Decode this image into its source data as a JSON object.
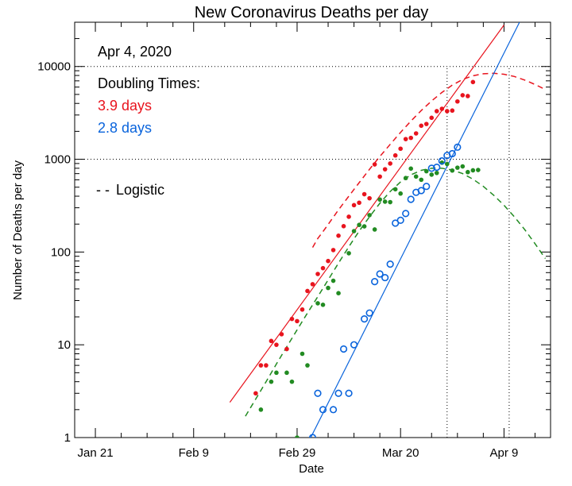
{
  "chart_data": {
    "type": "scatter",
    "title": "New Coronavirus Deaths per day",
    "xlabel": "Date",
    "ylabel": "Number of Deaths per day",
    "y_scale": "log",
    "ylim": [
      1,
      30000
    ],
    "xlim": [
      "2020-01-17",
      "2020-04-18"
    ],
    "x_ticks": [
      {
        "date": "2020-01-21",
        "label": "Jan 21"
      },
      {
        "date": "2020-02-09",
        "label": "Feb 9"
      },
      {
        "date": "2020-02-29",
        "label": "Feb 29"
      },
      {
        "date": "2020-03-20",
        "label": "Mar 20"
      },
      {
        "date": "2020-04-09",
        "label": "Apr 9"
      }
    ],
    "y_ticks": [
      {
        "value": 1,
        "label": "1"
      },
      {
        "value": 10,
        "label": "10"
      },
      {
        "value": 100,
        "label": "100"
      },
      {
        "value": 1000,
        "label": "1000"
      },
      {
        "value": 10000,
        "label": "10000"
      }
    ],
    "annotations": {
      "date": "Apr 4, 2020",
      "doubling_header": "Doubling Times:",
      "doubling_red": "3.9 days",
      "doubling_blue": "2.8 days",
      "logistic_label": "Logistic",
      "logistic_marker": "- -"
    },
    "colors": {
      "red": "#e8141e",
      "green": "#228b22",
      "blue": "#0a64dc",
      "axis": "#000000"
    },
    "reference_lines": {
      "horizontal": [
        1000,
        10000
      ],
      "vertical": [
        "2020-03-29",
        "2020-04-10"
      ]
    },
    "series": [
      {
        "marker": "filled-circle",
        "color": "red",
        "points": [
          [
            "2020-02-21",
            3
          ],
          [
            "2020-02-22",
            6
          ],
          [
            "2020-02-23",
            6
          ],
          [
            "2020-02-24",
            11
          ],
          [
            "2020-02-25",
            10
          ],
          [
            "2020-02-26",
            13
          ],
          [
            "2020-02-27",
            9
          ],
          [
            "2020-02-28",
            19
          ],
          [
            "2020-02-29",
            18
          ],
          [
            "2020-03-01",
            24
          ],
          [
            "2020-03-02",
            38
          ],
          [
            "2020-03-03",
            45
          ],
          [
            "2020-03-04",
            58
          ],
          [
            "2020-03-05",
            67
          ],
          [
            "2020-03-06",
            80
          ],
          [
            "2020-03-07",
            105
          ],
          [
            "2020-03-08",
            150
          ],
          [
            "2020-03-09",
            190
          ],
          [
            "2020-03-10",
            240
          ],
          [
            "2020-03-11",
            320
          ],
          [
            "2020-03-12",
            340
          ],
          [
            "2020-03-13",
            420
          ],
          [
            "2020-03-14",
            380
          ],
          [
            "2020-03-15",
            880
          ],
          [
            "2020-03-16",
            650
          ],
          [
            "2020-03-17",
            780
          ],
          [
            "2020-03-18",
            900
          ],
          [
            "2020-03-19",
            1100
          ],
          [
            "2020-03-20",
            1300
          ],
          [
            "2020-03-21",
            1650
          ],
          [
            "2020-03-22",
            1700
          ],
          [
            "2020-03-23",
            1900
          ],
          [
            "2020-03-24",
            2300
          ],
          [
            "2020-03-25",
            2400
          ],
          [
            "2020-03-26",
            2800
          ],
          [
            "2020-03-27",
            3300
          ],
          [
            "2020-03-28",
            3500
          ],
          [
            "2020-03-29",
            3300
          ],
          [
            "2020-03-30",
            3350
          ],
          [
            "2020-03-31",
            4200
          ],
          [
            "2020-04-01",
            4900
          ],
          [
            "2020-04-02",
            4800
          ],
          [
            "2020-04-03",
            6800
          ]
        ],
        "exponential_fit": {
          "doubling_days": 3.9,
          "start": [
            "2020-02-16",
            2.4
          ],
          "end": [
            "2020-04-09",
            28000
          ]
        },
        "logistic_fit": [
          [
            "2020-03-03",
            112
          ],
          [
            "2020-03-04",
            140
          ],
          [
            "2020-03-05",
            166
          ],
          [
            "2020-03-06",
            198
          ],
          [
            "2020-03-08",
            285
          ],
          [
            "2020-03-10",
            400
          ],
          [
            "2020-03-12",
            560
          ],
          [
            "2020-03-14",
            780
          ],
          [
            "2020-03-16",
            1070
          ],
          [
            "2020-03-18",
            1450
          ],
          [
            "2020-03-20",
            1950
          ],
          [
            "2020-03-22",
            2580
          ],
          [
            "2020-03-24",
            3350
          ],
          [
            "2020-03-26",
            4250
          ],
          [
            "2020-03-28",
            5250
          ],
          [
            "2020-03-30",
            6300
          ],
          [
            "2020-04-01",
            7250
          ],
          [
            "2020-04-03",
            7950
          ],
          [
            "2020-04-05",
            8350
          ],
          [
            "2020-04-07",
            8450
          ],
          [
            "2020-04-09",
            8250
          ],
          [
            "2020-04-11",
            7800
          ],
          [
            "2020-04-13",
            7150
          ],
          [
            "2020-04-15",
            6400
          ],
          [
            "2020-04-17",
            5650
          ]
        ]
      },
      {
        "marker": "filled-circle",
        "color": "green",
        "points": [
          [
            "2020-02-22",
            2
          ],
          [
            "2020-02-24",
            4
          ],
          [
            "2020-02-25",
            5
          ],
          [
            "2020-02-27",
            5
          ],
          [
            "2020-02-28",
            4
          ],
          [
            "2020-02-29",
            1
          ],
          [
            "2020-03-01",
            8
          ],
          [
            "2020-03-02",
            6
          ],
          [
            "2020-03-04",
            28
          ],
          [
            "2020-03-05",
            27
          ],
          [
            "2020-03-06",
            41
          ],
          [
            "2020-03-07",
            49
          ],
          [
            "2020-03-08",
            36
          ],
          [
            "2020-03-10",
            97
          ],
          [
            "2020-03-11",
            168
          ],
          [
            "2020-03-12",
            196
          ],
          [
            "2020-03-13",
            189
          ],
          [
            "2020-03-14",
            250
          ],
          [
            "2020-03-15",
            175
          ],
          [
            "2020-03-16",
            368
          ],
          [
            "2020-03-17",
            349
          ],
          [
            "2020-03-18",
            345
          ],
          [
            "2020-03-19",
            475
          ],
          [
            "2020-03-20",
            427
          ],
          [
            "2020-03-21",
            627
          ],
          [
            "2020-03-22",
            793
          ],
          [
            "2020-03-23",
            651
          ],
          [
            "2020-03-24",
            601
          ],
          [
            "2020-03-25",
            743
          ],
          [
            "2020-03-26",
            683
          ],
          [
            "2020-03-27",
            712
          ],
          [
            "2020-03-28",
            919
          ],
          [
            "2020-03-29",
            889
          ],
          [
            "2020-03-30",
            756
          ],
          [
            "2020-03-31",
            812
          ],
          [
            "2020-04-01",
            837
          ],
          [
            "2020-04-02",
            727
          ],
          [
            "2020-04-03",
            760
          ],
          [
            "2020-04-04",
            766
          ]
        ],
        "logistic_fit": [
          [
            "2020-02-19",
            1.7
          ],
          [
            "2020-02-21",
            2.6
          ],
          [
            "2020-02-23",
            4.0
          ],
          [
            "2020-02-25",
            6.2
          ],
          [
            "2020-02-27",
            9.5
          ],
          [
            "2020-02-29",
            14.5
          ],
          [
            "2020-03-02",
            22
          ],
          [
            "2020-03-04",
            33
          ],
          [
            "2020-03-06",
            50
          ],
          [
            "2020-03-08",
            76
          ],
          [
            "2020-03-10",
            114
          ],
          [
            "2020-03-12",
            168
          ],
          [
            "2020-03-14",
            240
          ],
          [
            "2020-03-16",
            335
          ],
          [
            "2020-03-18",
            450
          ],
          [
            "2020-03-20",
            570
          ],
          [
            "2020-03-22",
            680
          ],
          [
            "2020-03-24",
            760
          ],
          [
            "2020-03-26",
            800
          ],
          [
            "2020-03-28",
            800
          ],
          [
            "2020-03-30",
            765
          ],
          [
            "2020-04-01",
            700
          ],
          [
            "2020-04-03",
            610
          ],
          [
            "2020-04-05",
            510
          ],
          [
            "2020-04-07",
            410
          ],
          [
            "2020-04-09",
            320
          ],
          [
            "2020-04-11",
            240
          ],
          [
            "2020-04-13",
            175
          ],
          [
            "2020-04-15",
            123
          ],
          [
            "2020-04-17",
            85
          ]
        ]
      },
      {
        "marker": "open-circle",
        "color": "blue",
        "points": [
          [
            "2020-03-03",
            1
          ],
          [
            "2020-03-04",
            3
          ],
          [
            "2020-03-05",
            2
          ],
          [
            "2020-03-07",
            2
          ],
          [
            "2020-03-08",
            3
          ],
          [
            "2020-03-09",
            9
          ],
          [
            "2020-03-10",
            3
          ],
          [
            "2020-03-11",
            10
          ],
          [
            "2020-03-13",
            19
          ],
          [
            "2020-03-14",
            22
          ],
          [
            "2020-03-15",
            48
          ],
          [
            "2020-03-16",
            58
          ],
          [
            "2020-03-17",
            53
          ],
          [
            "2020-03-18",
            74
          ],
          [
            "2020-03-19",
            205
          ],
          [
            "2020-03-20",
            220
          ],
          [
            "2020-03-21",
            260
          ],
          [
            "2020-03-22",
            370
          ],
          [
            "2020-03-23",
            440
          ],
          [
            "2020-03-24",
            460
          ],
          [
            "2020-03-25",
            510
          ],
          [
            "2020-03-26",
            800
          ],
          [
            "2020-03-27",
            820
          ],
          [
            "2020-03-28",
            960
          ],
          [
            "2020-03-29",
            1100
          ],
          [
            "2020-03-30",
            1150
          ],
          [
            "2020-03-31",
            1350
          ]
        ],
        "exponential_fit": {
          "doubling_days": 2.8,
          "start": [
            "2020-03-02",
            0.85
          ],
          "end": [
            "2020-04-12",
            30000
          ]
        }
      }
    ]
  }
}
